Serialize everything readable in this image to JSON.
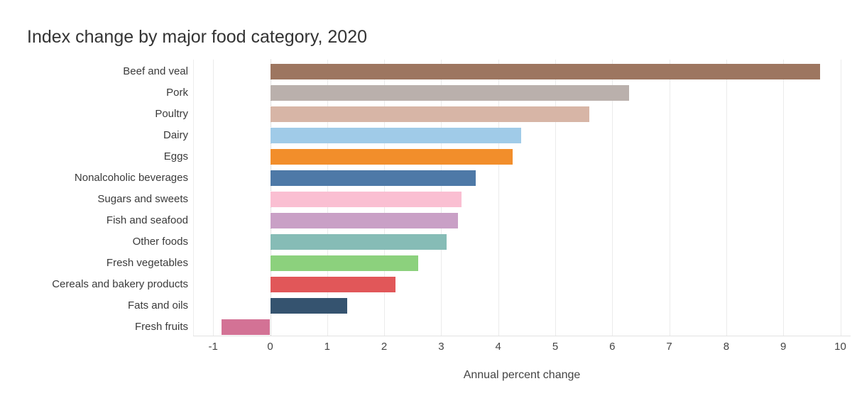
{
  "title": "Index change by major food category, 2020",
  "chart_data": {
    "type": "bar",
    "orientation": "horizontal",
    "title": "Index change by major food category, 2020",
    "xlabel": "Annual percent change",
    "ylabel": "",
    "xlim": [
      -1.35,
      10.2
    ],
    "xticks": [
      -1,
      0,
      1,
      2,
      3,
      4,
      5,
      6,
      7,
      8,
      9,
      10
    ],
    "grid": true,
    "legend": false,
    "categories": [
      "Beef and veal",
      "Pork",
      "Poultry",
      "Dairy",
      "Eggs",
      "Nonalcoholic beverages",
      "Sugars and sweets",
      "Fish and seafood",
      "Other foods",
      "Fresh vegetables",
      "Cereals and bakery products",
      "Fats and oils",
      "Fresh fruits"
    ],
    "values": [
      9.65,
      6.3,
      5.6,
      4.4,
      4.25,
      3.6,
      3.35,
      3.3,
      3.1,
      2.6,
      2.2,
      1.35,
      -0.85
    ],
    "colors": [
      "#9D7660",
      "#BAB0AC",
      "#D7B5A6",
      "#A0CBE8",
      "#F28E2B",
      "#4E79A7",
      "#FABFD2",
      "#C9A0C6",
      "#86BCB6",
      "#8CD17D",
      "#E15759",
      "#35536F",
      "#D37295"
    ]
  }
}
